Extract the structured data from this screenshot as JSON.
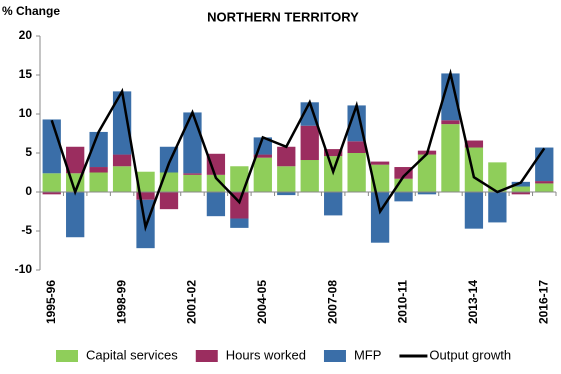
{
  "chart_data": {
    "type": "bar",
    "title": "NORTHERN TERRITORY",
    "y_label": "% Change",
    "categories": [
      "1995-96",
      null,
      null,
      "1998-99",
      null,
      null,
      "2001-02",
      null,
      null,
      "2004-05",
      null,
      null,
      "2007-08",
      null,
      null,
      "2010-11",
      null,
      null,
      "2013-14",
      null,
      null,
      "2016-17"
    ],
    "series": [
      {
        "name": "Capital services",
        "color": "#8fce5a",
        "values": [
          2.4,
          2.4,
          2.5,
          3.3,
          2.6,
          2.5,
          2.2,
          2.2,
          3.3,
          4.4,
          3.3,
          4.1,
          4.6,
          5.0,
          3.5,
          1.7,
          4.8,
          8.7,
          5.7,
          3.8,
          0.7,
          1.1
        ]
      },
      {
        "name": "Hours worked",
        "color": "#9b2d5f",
        "values": [
          -0.3,
          3.4,
          0.7,
          1.5,
          -1.0,
          -2.2,
          0.2,
          2.7,
          -3.4,
          0.4,
          2.5,
          4.4,
          0.9,
          1.5,
          0.4,
          1.5,
          0.5,
          0.5,
          0.9,
          0,
          -0.3,
          0.3
        ]
      },
      {
        "name": "MFP",
        "color": "#3a6ea8",
        "values": [
          6.9,
          -5.8,
          4.5,
          8.1,
          -6.2,
          3.3,
          7.8,
          -3.1,
          -1.2,
          2.2,
          -0.4,
          3.0,
          -3.0,
          4.6,
          -6.5,
          -1.2,
          -0.3,
          6.0,
          -4.7,
          -3.9,
          0.6,
          4.3
        ]
      },
      {
        "name": "Output growth",
        "type": "line",
        "color": "#000000",
        "values": [
          9.2,
          0,
          7.7,
          12.9,
          -4.5,
          3.7,
          10.2,
          1.8,
          -1.3,
          7.0,
          5.8,
          11.5,
          2.6,
          11.1,
          -2.5,
          2.0,
          4.9,
          15.2,
          1.9,
          0,
          1.2,
          5.6
        ]
      }
    ],
    "ylim": [
      -10,
      20
    ],
    "yticks": [
      -10,
      -5,
      0,
      5,
      10,
      15,
      20
    ],
    "grid": false
  }
}
